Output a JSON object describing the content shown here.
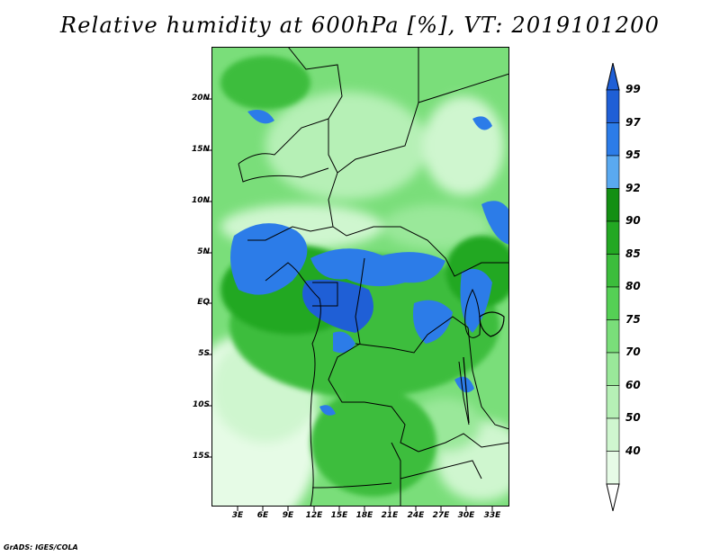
{
  "title": "Relative humidity at 600hPa [%], VT: 2019101200",
  "credit": "GrADS: IGES/COLA",
  "latitude_labels": [
    "20N",
    "15N",
    "10N",
    "5N",
    "EQ",
    "5S",
    "10S",
    "15S"
  ],
  "longitude_labels": [
    "3E",
    "6E",
    "9E",
    "12E",
    "15E",
    "18E",
    "21E",
    "24E",
    "27E",
    "30E",
    "33E"
  ],
  "colorbar": {
    "labels": [
      "99",
      "97",
      "95",
      "92",
      "90",
      "85",
      "80",
      "75",
      "70",
      "60",
      "50",
      "40"
    ],
    "colors": [
      "#1f5fd6",
      "#2c7ce8",
      "#5aa9f0",
      "#138f13",
      "#23a823",
      "#3cbd3c",
      "#55d055",
      "#7ade7a",
      "#9ae89a",
      "#b6f0b6",
      "#cff6cf",
      "#e6fbe6"
    ],
    "extend_top_color": "#1f5fd6",
    "extend_bottom_color": "#ffffff"
  },
  "map": {
    "variable": "relative humidity",
    "level": "600hPa",
    "units": "%",
    "lat_range": [
      "20S",
      "24N"
    ],
    "lon_range": [
      "0E",
      "35E"
    ]
  }
}
